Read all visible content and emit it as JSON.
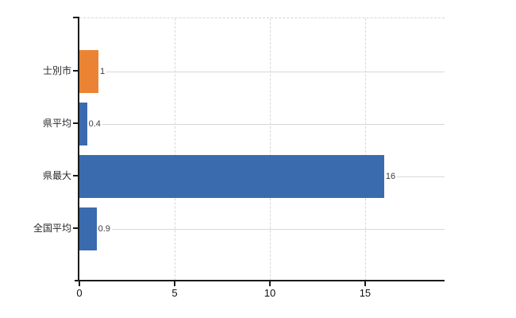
{
  "chart_data": {
    "type": "bar",
    "orientation": "horizontal",
    "title": "",
    "categories": [
      "士別市",
      "県平均",
      "県最大",
      "全国平均"
    ],
    "values": [
      1,
      0.4,
      16,
      0.9
    ],
    "bar_colors": [
      "#ea8434",
      "#3a6bae",
      "#3a6bae",
      "#3a6bae"
    ],
    "x_ticks": [
      0,
      5,
      10,
      15
    ],
    "xlim": [
      0,
      19.17
    ],
    "grid": "vertical-dashed-at-ticks",
    "legend": "none",
    "value_labels_shown": true
  },
  "colors": {
    "accent_orange": "#ea8434",
    "bar_blue": "#3a6bae",
    "axis": "#1a1a1a",
    "gridline": "#d8d4da",
    "leader_line": "#d4dcd2",
    "background": "#ffffff"
  }
}
